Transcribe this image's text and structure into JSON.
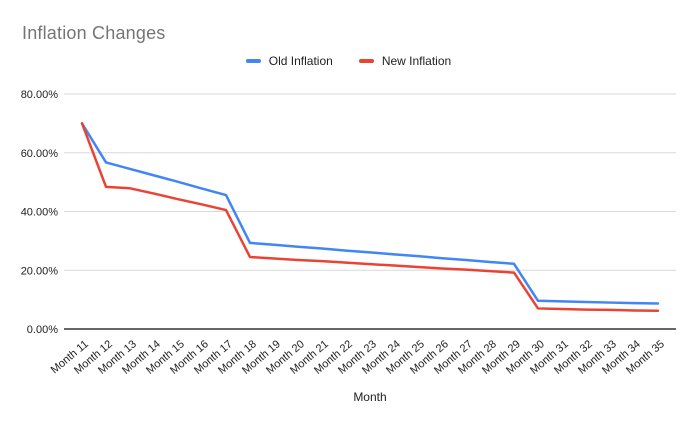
{
  "chart": {
    "title": "Inflation Changes",
    "colors": {
      "title": "#757575",
      "grid": "#d9d9d9",
      "axis_line": "#333333",
      "tick_label": "#202124",
      "axis_title": "#202124",
      "background": "#ffffff"
    }
  },
  "chart_data": {
    "type": "line",
    "title": "Inflation Changes",
    "xlabel": "Month",
    "ylabel": "",
    "ylim": [
      0,
      80
    ],
    "grid": "horizontal",
    "legend_position": "top-center",
    "yticks": {
      "values": [
        0,
        20,
        40,
        60,
        80
      ],
      "labels": [
        "0.00%",
        "20.00%",
        "40.00%",
        "60.00%",
        "80.00%"
      ]
    },
    "categories": [
      "Month 11",
      "Month 12",
      "Month 13",
      "Month 14",
      "Month 15",
      "Month 16",
      "Month 17",
      "Month 18",
      "Month 19",
      "Month 20",
      "Month 21",
      "Month 22",
      "Month 23",
      "Month 24",
      "Month 25",
      "Month 26",
      "Month 27",
      "Month 28",
      "Month 29",
      "Month 30",
      "Month 31",
      "Month 32",
      "Month 33",
      "Month 34",
      "Month 35"
    ],
    "series": [
      {
        "name": "Old Inflation",
        "color": "#4285F4",
        "values": [
          70,
          56.7,
          54.5,
          52.3,
          50.1,
          47.8,
          45.6,
          29.3,
          28.7,
          28.0,
          27.4,
          26.7,
          26.1,
          25.4,
          24.8,
          24.1,
          23.5,
          22.8,
          22.2,
          9.6,
          9.4,
          9.2,
          9.0,
          8.8,
          8.7
        ]
      },
      {
        "name": "New Inflation",
        "color": "#EA4335",
        "values": [
          70,
          48.4,
          47.9,
          46.1,
          44.2,
          42.4,
          40.5,
          24.5,
          24.0,
          23.5,
          23.1,
          22.6,
          22.1,
          21.6,
          21.1,
          20.6,
          20.2,
          19.7,
          19.2,
          7.0,
          6.8,
          6.6,
          6.5,
          6.3,
          6.2
        ]
      }
    ]
  }
}
